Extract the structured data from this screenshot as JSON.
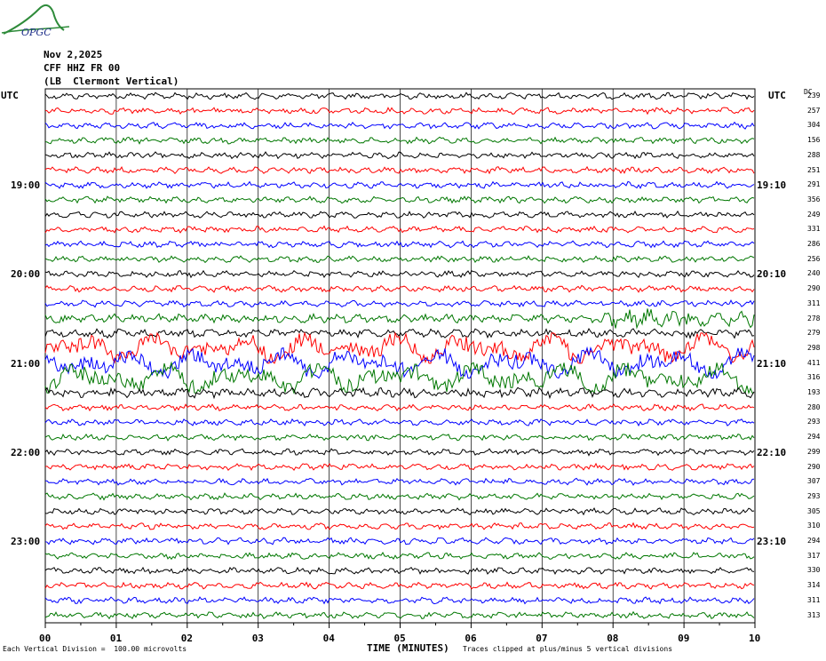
{
  "header": {
    "date": "Nov 2,2025",
    "station": "CFF HHZ FR 00",
    "location": "(LB  Clermont Vertical)",
    "logo_text": "OPGC"
  },
  "utc_label_left": "UTC",
  "utc_label_right": "UTC",
  "dc_header": "DC",
  "footer": {
    "scale_note": "Each Vertical Division =  100.00 microvolts",
    "clip_note": "Traces clipped at plus/minus 5 vertical divisions"
  },
  "chart_data": {
    "type": "line",
    "title": "",
    "xlabel": "TIME (MINUTES)",
    "x_ticks": [
      "00",
      "01",
      "02",
      "03",
      "04",
      "05",
      "06",
      "07",
      "08",
      "09",
      "10"
    ],
    "xlim": [
      0,
      10
    ],
    "trace_colors": [
      "#000000",
      "#ff0000",
      "#0000ff",
      "#007700"
    ],
    "traces_per_hour": 6,
    "time_labels_left": [
      {
        "row": 6,
        "label": "19:00"
      },
      {
        "row": 12,
        "label": "20:00"
      },
      {
        "row": 18,
        "label": "21:00"
      },
      {
        "row": 24,
        "label": "22:00"
      },
      {
        "row": 30,
        "label": "23:00"
      }
    ],
    "time_labels_right": [
      {
        "row": 6,
        "label": "19:10"
      },
      {
        "row": 12,
        "label": "20:10"
      },
      {
        "row": 18,
        "label": "21:10"
      },
      {
        "row": 24,
        "label": "22:10"
      },
      {
        "row": 30,
        "label": "23:10"
      }
    ],
    "dc_offsets": [
      239,
      257,
      304,
      156,
      288,
      251,
      291,
      356,
      249,
      331,
      286,
      256,
      240,
      290,
      311,
      278,
      279,
      298,
      411,
      316,
      193,
      280,
      293,
      294,
      299,
      290,
      307,
      293,
      305,
      310,
      294,
      317,
      330,
      314,
      311,
      313
    ]
  }
}
